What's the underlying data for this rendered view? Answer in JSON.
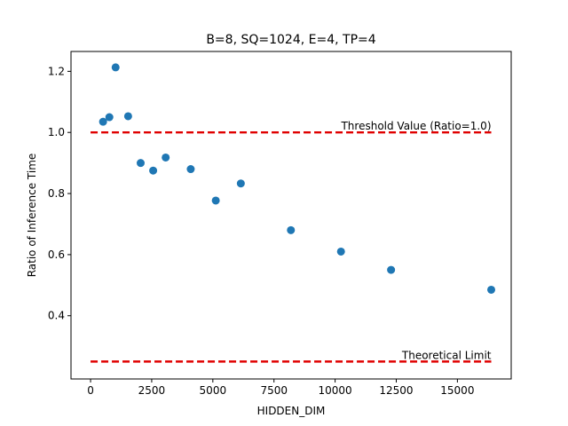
{
  "chart_data": {
    "type": "scatter",
    "title": "B=8, SQ=1024, E=4, TP=4",
    "xlabel": "HIDDEN_DIM",
    "ylabel": "Ratio of Inference Time",
    "xlim": [
      -800,
      17200
    ],
    "ylim": [
      0.193,
      1.265
    ],
    "xticks": [
      0,
      2500,
      5000,
      7500,
      10000,
      12500,
      15000
    ],
    "xtick_labels": [
      "0",
      "2500",
      "5000",
      "7500",
      "10000",
      "12500",
      "15000"
    ],
    "yticks": [
      0.4,
      0.6,
      0.8,
      1.0,
      1.2
    ],
    "ytick_labels": [
      "0.4",
      "0.6",
      "0.8",
      "1.0",
      "1.2"
    ],
    "grid": false,
    "points": [
      {
        "x": 512,
        "y": 1.035
      },
      {
        "x": 768,
        "y": 1.05
      },
      {
        "x": 1024,
        "y": 1.213
      },
      {
        "x": 1536,
        "y": 1.053
      },
      {
        "x": 2048,
        "y": 0.9
      },
      {
        "x": 2560,
        "y": 0.875
      },
      {
        "x": 3072,
        "y": 0.918
      },
      {
        "x": 4096,
        "y": 0.88
      },
      {
        "x": 5120,
        "y": 0.777
      },
      {
        "x": 6144,
        "y": 0.833
      },
      {
        "x": 8192,
        "y": 0.68
      },
      {
        "x": 10240,
        "y": 0.61
      },
      {
        "x": 12288,
        "y": 0.55
      },
      {
        "x": 16384,
        "y": 0.485
      }
    ],
    "reference_lines": [
      {
        "y": 1.0,
        "x_range": [
          0,
          16384
        ],
        "label": "Threshold Value (Ratio=1.0)",
        "color": "#e00000",
        "style": "dashed"
      },
      {
        "y": 0.25,
        "x_range": [
          0,
          16384
        ],
        "label": "Theoretical Limit",
        "color": "#e00000",
        "style": "dashed"
      }
    ],
    "marker_color": "#1f77b4"
  }
}
